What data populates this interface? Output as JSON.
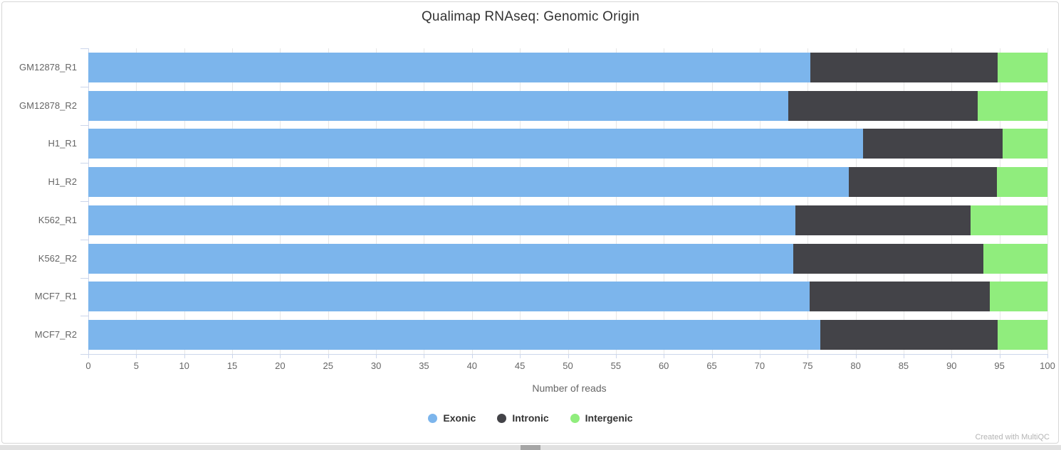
{
  "page": {
    "footer": "Created with MultiQC"
  },
  "chart_data": {
    "type": "bar",
    "orientation": "horizontal",
    "stacked": true,
    "title": "Qualimap RNAseq: Genomic Origin",
    "xlabel": "Number of reads",
    "xlim": [
      0,
      100
    ],
    "xticks": [
      0,
      5,
      10,
      15,
      20,
      25,
      30,
      35,
      40,
      45,
      50,
      55,
      60,
      65,
      70,
      75,
      80,
      85,
      90,
      95,
      100
    ],
    "grid": true,
    "legend_position": "bottom",
    "categories": [
      "GM12878_R1",
      "GM12878_R2",
      "H1_R1",
      "H1_R2",
      "K562_R1",
      "K562_R2",
      "MCF7_R1",
      "MCF7_R2"
    ],
    "series": [
      {
        "name": "Exonic",
        "color": "#7cb5ec",
        "values": [
          75.3,
          73.0,
          80.8,
          79.3,
          73.7,
          73.5,
          75.2,
          76.3
        ]
      },
      {
        "name": "Intronic",
        "color": "#434348",
        "values": [
          19.5,
          19.7,
          14.5,
          15.4,
          18.3,
          19.8,
          18.8,
          18.5
        ]
      },
      {
        "name": "Intergenic",
        "color": "#90ed7d",
        "values": [
          5.2,
          7.3,
          4.7,
          5.3,
          8.0,
          6.7,
          6.0,
          5.2
        ]
      }
    ],
    "style_colors": {
      "gridline": "#e6e6e6",
      "axis_line": "#ccd6eb",
      "tick_label": "#666666",
      "title": "#333333",
      "legend_text": "#333333",
      "footer_text": "#b4b4b4"
    }
  }
}
